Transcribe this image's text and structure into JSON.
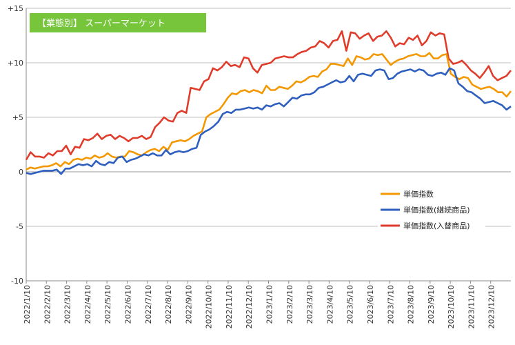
{
  "chart_data": {
    "type": "line",
    "title": "【業態別】 スーパーマーケット",
    "title_bg_color": "#77c53b",
    "xlabel": "",
    "ylabel": "",
    "ylim": [
      -10,
      15
    ],
    "yticks": [
      15,
      10,
      5,
      0,
      -5,
      -10
    ],
    "ytick_labels": [
      "+15",
      "+10",
      "+5",
      "0",
      "-5",
      "-10"
    ],
    "grid": "horizontal",
    "legend_position": "right-middle",
    "x_tick_labels": [
      "2022/1/10",
      "2022/2/10",
      "2022/3/10",
      "2022/4/10",
      "2022/5/10",
      "2022/6/10",
      "2022/7/10",
      "2022/8/10",
      "2022/9/10",
      "2022/10/10",
      "2022/11/10",
      "2022/12/10",
      "2023/1/10",
      "2023/2/10",
      "2023/3/10",
      "2023/4/10",
      "2023/5/10",
      "2023/6/10",
      "2023/7/10",
      "2023/8/10",
      "2023/9/10",
      "2023/10/10",
      "2023/11/10",
      "2023/12/10"
    ],
    "series": [
      {
        "name": "単価指数",
        "color": "#f39800",
        "values": [
          0.2,
          0.4,
          0.3,
          0.4,
          0.5,
          0.5,
          0.6,
          0.8,
          0.5,
          0.9,
          0.7,
          1.1,
          1.2,
          1.1,
          1.3,
          1.2,
          1.5,
          1.3,
          1.4,
          1.7,
          1.4,
          1.3,
          1.4,
          1.4,
          1.9,
          1.8,
          1.6,
          1.5,
          1.8,
          2.0,
          2.1,
          1.9,
          2.3,
          2.0,
          2.7,
          2.8,
          2.9,
          2.8,
          3.0,
          3.3,
          3.5,
          3.7,
          5.0,
          5.3,
          5.5,
          5.7,
          6.2,
          6.8,
          7.2,
          7.1,
          7.4,
          7.5,
          7.3,
          7.5,
          7.4,
          7.2,
          7.9,
          7.5,
          7.5,
          7.8,
          7.7,
          7.6,
          7.9,
          8.3,
          8.2,
          8.4,
          8.7,
          8.8,
          8.7,
          9.2,
          9.4,
          9.9,
          9.9,
          9.8,
          9.7,
          10.4,
          9.8,
          10.6,
          10.5,
          10.3,
          10.4,
          10.8,
          10.7,
          10.8,
          10.3,
          9.8,
          10.1,
          10.3,
          10.4,
          10.6,
          10.7,
          10.8,
          10.6,
          10.6,
          10.9,
          10.4,
          10.4,
          10.7,
          10.8,
          9.0,
          8.7,
          8.5,
          8.7,
          8.6,
          8.0,
          7.8,
          7.6,
          7.7,
          7.8,
          7.6,
          7.3,
          7.3,
          6.9,
          7.4
        ]
      },
      {
        "name": "単価指数(継続商品)",
        "color": "#2e5fbf",
        "values": [
          -0.1,
          -0.2,
          -0.1,
          0.0,
          0.1,
          0.1,
          0.1,
          0.2,
          -0.2,
          0.3,
          0.3,
          0.5,
          0.7,
          0.6,
          0.7,
          0.5,
          1.0,
          0.7,
          0.6,
          0.9,
          0.8,
          1.3,
          1.4,
          0.9,
          1.1,
          1.2,
          1.4,
          1.6,
          1.5,
          1.7,
          1.5,
          1.5,
          2.0,
          1.6,
          1.8,
          1.9,
          1.8,
          1.9,
          2.1,
          2.2,
          3.4,
          3.7,
          3.9,
          4.2,
          4.6,
          5.3,
          5.5,
          5.4,
          5.7,
          5.7,
          5.8,
          5.9,
          5.8,
          5.9,
          5.7,
          6.1,
          6.0,
          6.2,
          6.3,
          6.0,
          6.4,
          6.8,
          6.7,
          7.0,
          7.1,
          7.1,
          7.3,
          7.7,
          7.8,
          8.0,
          8.2,
          8.4,
          8.2,
          8.3,
          8.8,
          8.3,
          8.9,
          9.0,
          8.9,
          8.8,
          9.3,
          9.4,
          9.3,
          8.5,
          8.6,
          9.0,
          9.2,
          9.3,
          9.4,
          9.2,
          9.4,
          9.3,
          8.9,
          8.8,
          9.0,
          9.1,
          8.9,
          9.5,
          9.3,
          8.1,
          7.8,
          7.4,
          7.3,
          7.0,
          6.7,
          6.3,
          6.4,
          6.5,
          6.3,
          6.1,
          5.7,
          6.0
        ]
      },
      {
        "name": "単価指数(入替商品)",
        "color": "#e03c2b",
        "values": [
          1.1,
          1.8,
          1.4,
          1.4,
          1.3,
          1.7,
          1.5,
          1.9,
          1.9,
          2.4,
          1.6,
          2.3,
          2.2,
          3.0,
          2.9,
          3.1,
          3.5,
          3.0,
          3.3,
          3.4,
          3.0,
          3.3,
          3.1,
          2.8,
          3.1,
          3.1,
          3.3,
          3.0,
          3.2,
          4.1,
          4.5,
          5.0,
          4.7,
          4.6,
          5.4,
          5.6,
          5.4,
          7.7,
          7.6,
          7.5,
          8.3,
          8.5,
          9.5,
          9.3,
          9.6,
          10.1,
          9.7,
          9.8,
          9.6,
          10.5,
          10.4,
          9.5,
          9.1,
          9.8,
          9.9,
          10.0,
          10.4,
          10.5,
          10.6,
          10.5,
          10.5,
          10.8,
          11.0,
          11.1,
          11.4,
          11.5,
          12.0,
          11.8,
          11.4,
          12.0,
          12.1,
          12.9,
          11.1,
          12.8,
          12.7,
          12.2,
          12.5,
          12.7,
          12.0,
          12.4,
          12.5,
          12.9,
          12.3,
          11.5,
          11.8,
          11.7,
          12.3,
          12.1,
          12.5,
          11.6,
          12.0,
          12.8,
          12.5,
          12.7,
          12.6,
          10.4,
          9.9,
          10.0,
          10.2,
          9.8,
          9.3,
          9.0,
          8.6,
          9.1,
          9.7,
          8.8,
          8.4,
          8.6,
          8.8,
          9.3
        ]
      }
    ]
  }
}
